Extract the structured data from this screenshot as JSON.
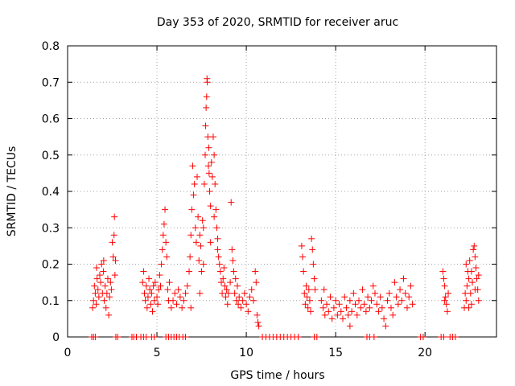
{
  "chart_data": {
    "type": "scatter",
    "title": "Day 353 of 2020, SRMTID for receiver aruc",
    "xlabel": "GPS time / hours",
    "ylabel": "SRMTID / TECUs",
    "xlim": [
      0,
      24
    ],
    "ylim": [
      0,
      0.8
    ],
    "xticks": [
      0,
      5,
      10,
      15,
      20
    ],
    "yticks": [
      0,
      0.1,
      0.2,
      0.3,
      0.4,
      0.5,
      0.6,
      0.7,
      0.8
    ],
    "xtick_labels": [
      "0",
      "5",
      "10",
      "15",
      "20"
    ],
    "ytick_labels": [
      "0",
      "0.1",
      "0.2",
      "0.3",
      "0.4",
      "0.5",
      "0.6",
      "0.7",
      "0.8"
    ],
    "grid": true,
    "marker": "+",
    "color": "#ff0000",
    "series": [
      {
        "name": "SRMTID",
        "points": [
          [
            1.4,
            0.08
          ],
          [
            1.45,
            0.1
          ],
          [
            1.5,
            0.14
          ],
          [
            1.55,
            0.12
          ],
          [
            1.6,
            0.09
          ],
          [
            1.65,
            0.16
          ],
          [
            1.7,
            0.13
          ],
          [
            1.75,
            0.11
          ],
          [
            1.8,
            0.17
          ],
          [
            1.85,
            0.15
          ],
          [
            1.9,
            0.2
          ],
          [
            1.95,
            0.12
          ],
          [
            2.0,
            0.18
          ],
          [
            2.05,
            0.1
          ],
          [
            2.1,
            0.14
          ],
          [
            2.15,
            0.08
          ],
          [
            2.2,
            0.12
          ],
          [
            2.25,
            0.16
          ],
          [
            2.3,
            0.06
          ],
          [
            2.35,
            0.11
          ],
          [
            2.4,
            0.15
          ],
          [
            2.45,
            0.13
          ],
          [
            2.5,
            0.26
          ],
          [
            2.55,
            0.22
          ],
          [
            2.6,
            0.28
          ],
          [
            2.62,
            0.33
          ],
          [
            2.65,
            0.17
          ],
          [
            2.68,
            0.21
          ],
          [
            1.62,
            0.19
          ],
          [
            2.02,
            0.21
          ],
          [
            4.2,
            0.15
          ],
          [
            4.25,
            0.18
          ],
          [
            4.3,
            0.12
          ],
          [
            4.35,
            0.1
          ],
          [
            4.4,
            0.14
          ],
          [
            4.45,
            0.08
          ],
          [
            4.5,
            0.11
          ],
          [
            4.55,
            0.16
          ],
          [
            4.6,
            0.13
          ],
          [
            4.65,
            0.09
          ],
          [
            4.7,
            0.12
          ],
          [
            4.75,
            0.07
          ],
          [
            4.8,
            0.14
          ],
          [
            4.85,
            0.1
          ],
          [
            4.9,
            0.15
          ],
          [
            5.0,
            0.11
          ],
          [
            5.05,
            0.09
          ],
          [
            5.1,
            0.13
          ],
          [
            5.15,
            0.17
          ],
          [
            5.2,
            0.14
          ],
          [
            5.25,
            0.2
          ],
          [
            5.3,
            0.24
          ],
          [
            5.35,
            0.28
          ],
          [
            5.4,
            0.31
          ],
          [
            5.45,
            0.35
          ],
          [
            5.5,
            0.26
          ],
          [
            5.55,
            0.22
          ],
          [
            5.6,
            0.13
          ],
          [
            5.65,
            0.1
          ],
          [
            5.7,
            0.15
          ],
          [
            5.8,
            0.08
          ],
          [
            5.9,
            0.1
          ],
          [
            6.0,
            0.12
          ],
          [
            6.1,
            0.09
          ],
          [
            6.2,
            0.13
          ],
          [
            6.3,
            0.11
          ],
          [
            6.4,
            0.08
          ],
          [
            6.5,
            0.1
          ],
          [
            6.6,
            0.12
          ],
          [
            6.7,
            0.14
          ],
          [
            6.8,
            0.18
          ],
          [
            6.85,
            0.22
          ],
          [
            6.9,
            0.28
          ],
          [
            6.95,
            0.35
          ],
          [
            7.0,
            0.47
          ],
          [
            7.05,
            0.39
          ],
          [
            7.1,
            0.42
          ],
          [
            7.15,
            0.3
          ],
          [
            7.2,
            0.26
          ],
          [
            7.25,
            0.44
          ],
          [
            7.3,
            0.33
          ],
          [
            7.35,
            0.21
          ],
          [
            7.4,
            0.28
          ],
          [
            7.45,
            0.25
          ],
          [
            7.5,
            0.18
          ],
          [
            7.55,
            0.32
          ],
          [
            7.6,
            0.3
          ],
          [
            7.65,
            0.42
          ],
          [
            7.7,
            0.5
          ],
          [
            7.72,
            0.58
          ],
          [
            7.75,
            0.63
          ],
          [
            7.78,
            0.66
          ],
          [
            7.8,
            0.71
          ],
          [
            7.82,
            0.7
          ],
          [
            7.85,
            0.55
          ],
          [
            7.88,
            0.47
          ],
          [
            7.9,
            0.52
          ],
          [
            7.92,
            0.45
          ],
          [
            7.95,
            0.4
          ],
          [
            8.0,
            0.36
          ],
          [
            8.05,
            0.48
          ],
          [
            8.1,
            0.44
          ],
          [
            8.15,
            0.55
          ],
          [
            8.2,
            0.5
          ],
          [
            8.25,
            0.42
          ],
          [
            8.3,
            0.35
          ],
          [
            8.35,
            0.3
          ],
          [
            8.4,
            0.27
          ],
          [
            8.45,
            0.22
          ],
          [
            8.5,
            0.2
          ],
          [
            8.55,
            0.18
          ],
          [
            8.6,
            0.15
          ],
          [
            8.65,
            0.12
          ],
          [
            8.7,
            0.16
          ],
          [
            8.75,
            0.19
          ],
          [
            8.8,
            0.14
          ],
          [
            8.85,
            0.11
          ],
          [
            8.9,
            0.13
          ],
          [
            8.95,
            0.09
          ],
          [
            9.0,
            0.12
          ],
          [
            9.1,
            0.15
          ],
          [
            9.15,
            0.37
          ],
          [
            9.2,
            0.24
          ],
          [
            9.25,
            0.21
          ],
          [
            9.3,
            0.18
          ],
          [
            9.35,
            0.12
          ],
          [
            9.4,
            0.16
          ],
          [
            9.45,
            0.1
          ],
          [
            9.5,
            0.14
          ],
          [
            9.55,
            0.09
          ],
          [
            9.6,
            0.11
          ],
          [
            9.7,
            0.08
          ],
          [
            9.8,
            0.1
          ],
          [
            9.9,
            0.12
          ],
          [
            10.0,
            0.09
          ],
          [
            10.1,
            0.07
          ],
          [
            10.2,
            0.11
          ],
          [
            10.3,
            0.13
          ],
          [
            10.4,
            0.1
          ],
          [
            10.5,
            0.18
          ],
          [
            10.55,
            0.15
          ],
          [
            10.6,
            0.06
          ],
          [
            10.65,
            0.04
          ],
          [
            10.7,
            0.03
          ],
          [
            7.4,
            0.12
          ],
          [
            7.6,
            0.2
          ],
          [
            8.0,
            0.26
          ],
          [
            8.2,
            0.33
          ],
          [
            8.4,
            0.24
          ],
          [
            6.9,
            0.08
          ],
          [
            13.1,
            0.25
          ],
          [
            13.15,
            0.22
          ],
          [
            13.2,
            0.18
          ],
          [
            13.25,
            0.12
          ],
          [
            13.3,
            0.09
          ],
          [
            13.35,
            0.14
          ],
          [
            13.4,
            0.11
          ],
          [
            13.45,
            0.08
          ],
          [
            13.5,
            0.13
          ],
          [
            13.55,
            0.1
          ],
          [
            13.6,
            0.07
          ],
          [
            13.65,
            0.27
          ],
          [
            13.7,
            0.24
          ],
          [
            13.75,
            0.2
          ],
          [
            13.8,
            0.16
          ],
          [
            13.85,
            0.13
          ],
          [
            14.2,
            0.1
          ],
          [
            14.3,
            0.08
          ],
          [
            14.4,
            0.06
          ],
          [
            14.5,
            0.09
          ],
          [
            14.6,
            0.07
          ],
          [
            14.7,
            0.11
          ],
          [
            14.8,
            0.05
          ],
          [
            14.9,
            0.08
          ],
          [
            15.0,
            0.1
          ],
          [
            15.1,
            0.06
          ],
          [
            15.2,
            0.09
          ],
          [
            15.3,
            0.07
          ],
          [
            15.4,
            0.05
          ],
          [
            15.5,
            0.11
          ],
          [
            15.6,
            0.08
          ],
          [
            15.7,
            0.06
          ],
          [
            15.8,
            0.1
          ],
          [
            15.9,
            0.07
          ],
          [
            16.0,
            0.12
          ],
          [
            16.1,
            0.09
          ],
          [
            16.2,
            0.06
          ],
          [
            16.3,
            0.1
          ],
          [
            16.4,
            0.08
          ],
          [
            16.5,
            0.13
          ],
          [
            16.6,
            0.09
          ],
          [
            16.7,
            0.07
          ],
          [
            16.8,
            0.11
          ],
          [
            16.9,
            0.08
          ],
          [
            17.0,
            0.1
          ],
          [
            17.1,
            0.14
          ],
          [
            17.2,
            0.12
          ],
          [
            17.3,
            0.09
          ],
          [
            17.4,
            0.07
          ],
          [
            17.5,
            0.11
          ],
          [
            17.6,
            0.08
          ],
          [
            17.7,
            0.05
          ],
          [
            17.8,
            0.03
          ],
          [
            17.9,
            0.1
          ],
          [
            18.0,
            0.12
          ],
          [
            18.1,
            0.08
          ],
          [
            18.2,
            0.06
          ],
          [
            18.3,
            0.15
          ],
          [
            18.4,
            0.11
          ],
          [
            18.5,
            0.09
          ],
          [
            18.6,
            0.13
          ],
          [
            18.7,
            0.1
          ],
          [
            18.8,
            0.16
          ],
          [
            18.9,
            0.12
          ],
          [
            19.0,
            0.08
          ],
          [
            19.1,
            0.11
          ],
          [
            19.2,
            0.14
          ],
          [
            19.3,
            0.09
          ],
          [
            14.35,
            0.13
          ],
          [
            15.8,
            0.03
          ],
          [
            21.0,
            0.18
          ],
          [
            21.05,
            0.16
          ],
          [
            21.1,
            0.14
          ],
          [
            21.15,
            0.11
          ],
          [
            21.2,
            0.09
          ],
          [
            21.25,
            0.07
          ],
          [
            21.3,
            0.12
          ],
          [
            22.2,
            0.08
          ],
          [
            22.25,
            0.12
          ],
          [
            22.3,
            0.1
          ],
          [
            22.35,
            0.14
          ],
          [
            22.4,
            0.18
          ],
          [
            22.45,
            0.16
          ],
          [
            22.5,
            0.21
          ],
          [
            22.55,
            0.12
          ],
          [
            22.6,
            0.09
          ],
          [
            22.65,
            0.15
          ],
          [
            22.7,
            0.24
          ],
          [
            22.75,
            0.25
          ],
          [
            22.8,
            0.22
          ],
          [
            22.85,
            0.19
          ],
          [
            22.9,
            0.16
          ],
          [
            22.95,
            0.13
          ],
          [
            23.0,
            0.1
          ],
          [
            22.3,
            0.2
          ],
          [
            22.6,
            0.18
          ],
          [
            22.8,
            0.13
          ],
          [
            22.45,
            0.08
          ],
          [
            23.0,
            0.17
          ],
          [
            21.1,
            0.1
          ]
        ]
      }
    ],
    "zero_points_x": [
      1.35,
      1.45,
      1.55,
      2.7,
      2.8,
      3.6,
      3.7,
      3.85,
      4.1,
      4.25,
      4.4,
      4.7,
      4.85,
      5.5,
      5.65,
      5.8,
      5.95,
      6.1,
      6.25,
      6.45,
      6.6,
      10.9,
      11.1,
      11.3,
      11.5,
      11.7,
      11.9,
      12.1,
      12.3,
      12.5,
      12.7,
      12.9,
      13.8,
      13.95,
      16.75,
      16.9,
      17.15,
      19.75,
      19.9,
      20.9,
      21.05,
      21.4,
      21.55,
      21.7
    ]
  }
}
